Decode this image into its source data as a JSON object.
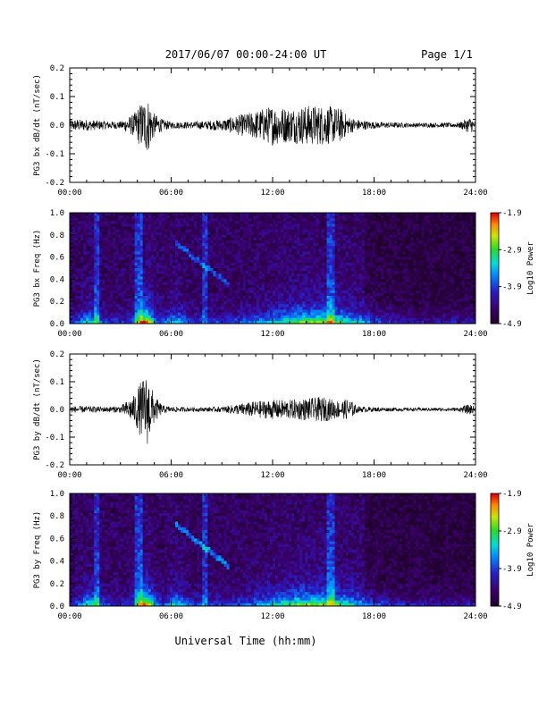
{
  "header": {
    "title": "2017/06/07  00:00-24:00 UT",
    "page": "Page 1/1"
  },
  "footer": {
    "xlabel": "Universal Time (hh:mm)"
  },
  "chart_data": [
    {
      "type": "line",
      "ylabel": "PG3 bx dB/dt (nT/sec)",
      "ylim": [
        -0.2,
        0.2
      ],
      "yticks": [
        "0.2",
        "0.1",
        "0.0",
        "-0.1",
        "-0.2"
      ],
      "xticks": [
        "00:00",
        "06:00",
        "12:00",
        "18:00",
        "24:00"
      ],
      "x_range_hours": [
        0,
        24
      ],
      "envelope": {
        "hours": [
          0,
          1,
          2,
          3,
          3.8,
          4.2,
          4.6,
          5.0,
          5.5,
          6,
          7,
          8,
          9,
          10,
          11,
          12,
          13,
          14,
          15,
          16,
          16.5,
          17,
          18,
          19,
          20,
          21,
          22,
          23,
          23.7,
          24
        ],
        "amplitude": [
          0.02,
          0.02,
          0.015,
          0.013,
          0.04,
          0.08,
          0.1,
          0.04,
          0.02,
          0.012,
          0.012,
          0.015,
          0.02,
          0.035,
          0.05,
          0.07,
          0.06,
          0.07,
          0.07,
          0.06,
          0.03,
          0.02,
          0.012,
          0.01,
          0.008,
          0.008,
          0.008,
          0.009,
          0.03,
          0.01
        ]
      }
    },
    {
      "type": "heatmap",
      "ylabel": "PG3 bx Freq (Hz)",
      "ylim": [
        0.0,
        1.0
      ],
      "yticks": [
        "1.0",
        "0.8",
        "0.6",
        "0.4",
        "0.2",
        "0.0"
      ],
      "xticks": [
        "00:00",
        "06:00",
        "12:00",
        "18:00",
        "24:00"
      ],
      "colorbar": {
        "label": "Log10 Power",
        "ticks": [
          "-1.9",
          "-2.9",
          "-3.9",
          "-4.9"
        ],
        "range": [
          -4.9,
          -1.9
        ]
      }
    },
    {
      "type": "line",
      "ylabel": "PG3 by dB/dt (nT/sec)",
      "ylim": [
        -0.2,
        0.2
      ],
      "yticks": [
        "0.2",
        "0.1",
        "0.0",
        "-0.1",
        "-0.2"
      ],
      "xticks": [
        "00:00",
        "06:00",
        "12:00",
        "18:00",
        "24:00"
      ],
      "x_range_hours": [
        0,
        24
      ],
      "envelope": {
        "hours": [
          0,
          1,
          2,
          3,
          3.8,
          4.2,
          4.6,
          5.0,
          5.5,
          6,
          7,
          8,
          9,
          10,
          11,
          12,
          13,
          14,
          15,
          16,
          16.5,
          17,
          18,
          19,
          20,
          21,
          22,
          23,
          23.7,
          24
        ],
        "amplitude": [
          0.012,
          0.012,
          0.01,
          0.012,
          0.05,
          0.1,
          0.13,
          0.05,
          0.015,
          0.01,
          0.008,
          0.008,
          0.01,
          0.02,
          0.03,
          0.035,
          0.035,
          0.04,
          0.045,
          0.03,
          0.04,
          0.012,
          0.008,
          0.007,
          0.006,
          0.006,
          0.006,
          0.007,
          0.02,
          0.008
        ]
      }
    },
    {
      "type": "heatmap",
      "ylabel": "PG3 by Freq (Hz)",
      "ylim": [
        0.0,
        1.0
      ],
      "yticks": [
        "1.0",
        "0.8",
        "0.6",
        "0.4",
        "0.2",
        "0.0"
      ],
      "xticks": [
        "00:00",
        "06:00",
        "12:00",
        "18:00",
        "24:00"
      ],
      "colorbar": {
        "label": "Log10 Power",
        "ticks": [
          "-1.9",
          "-2.9",
          "-3.9",
          "-4.9"
        ],
        "range": [
          -4.9,
          -1.9
        ]
      }
    }
  ]
}
